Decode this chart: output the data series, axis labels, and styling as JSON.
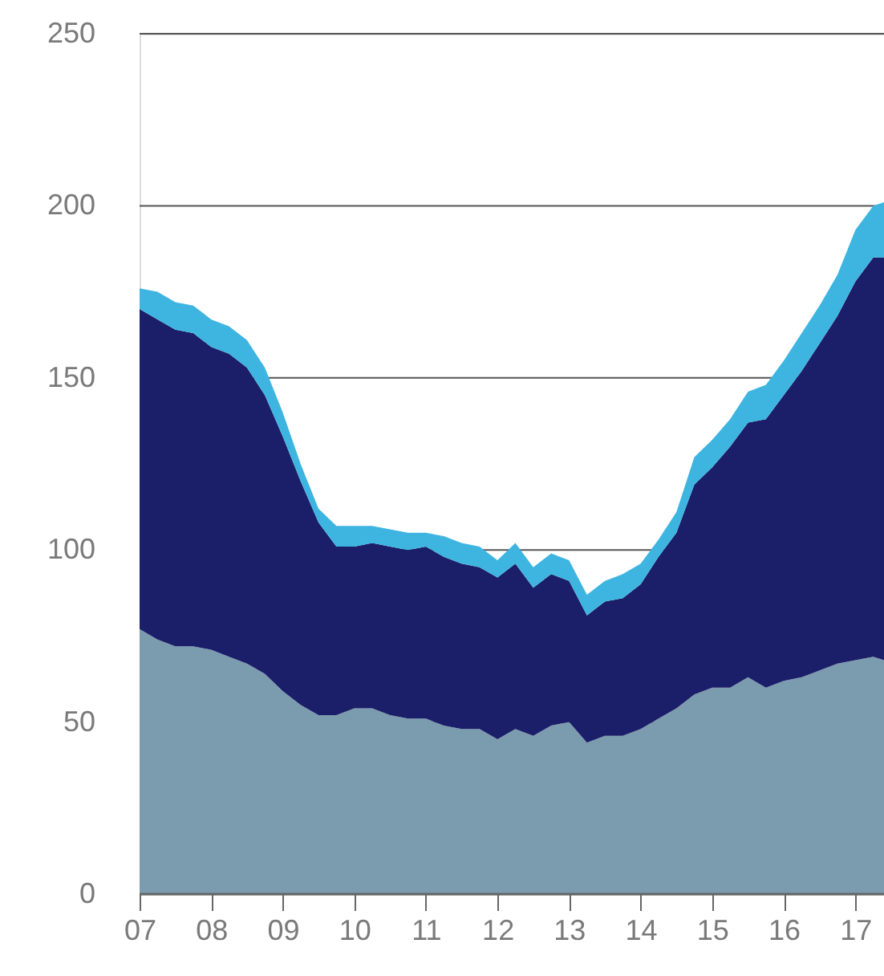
{
  "chart_data": {
    "type": "area",
    "stacked": true,
    "grid": "y",
    "x": [
      2007,
      2007.25,
      2007.5,
      2007.75,
      2008,
      2008.25,
      2008.5,
      2008.75,
      2009,
      2009.25,
      2009.5,
      2009.75,
      2010,
      2010.25,
      2010.5,
      2010.75,
      2011,
      2011.25,
      2011.5,
      2011.75,
      2012,
      2012.25,
      2012.5,
      2012.75,
      2013,
      2013.25,
      2013.5,
      2013.75,
      2014,
      2014.25,
      2014.5,
      2014.75,
      2015,
      2015.25,
      2015.5,
      2015.75,
      2016,
      2016.25,
      2016.5,
      2016.75,
      2017,
      2017.25,
      2017.4
    ],
    "xlim": [
      2007,
      2017.4
    ],
    "xticks": [
      {
        "value": 2007,
        "label": "07"
      },
      {
        "value": 2008,
        "label": "08"
      },
      {
        "value": 2009,
        "label": "09"
      },
      {
        "value": 2010,
        "label": "10"
      },
      {
        "value": 2011,
        "label": "11"
      },
      {
        "value": 2012,
        "label": "12"
      },
      {
        "value": 2013,
        "label": "13"
      },
      {
        "value": 2014,
        "label": "14"
      },
      {
        "value": 2015,
        "label": "15"
      },
      {
        "value": 2016,
        "label": "16"
      },
      {
        "value": 2017,
        "label": "17"
      }
    ],
    "ylim": [
      0,
      250
    ],
    "yticks": [
      0,
      50,
      100,
      150,
      200,
      250
    ],
    "series": [
      {
        "color": "#7b9bae",
        "values": [
          77,
          74,
          72,
          72,
          71,
          69,
          67,
          64,
          59,
          55,
          52,
          52,
          54,
          54,
          52,
          51,
          51,
          49,
          48,
          48,
          45,
          48,
          46,
          49,
          50,
          44,
          46,
          46,
          48,
          51,
          54,
          58,
          60,
          60,
          63,
          60,
          62,
          63,
          65,
          67,
          68,
          69,
          68
        ]
      },
      {
        "color": "#1b1e68",
        "values": [
          93,
          93,
          92,
          91,
          88,
          88,
          86,
          81,
          74,
          65,
          56,
          49,
          47,
          48,
          49,
          49,
          50,
          49,
          48,
          47,
          47,
          48,
          43,
          44,
          41,
          37,
          39,
          40,
          42,
          47,
          51,
          61,
          64,
          70,
          74,
          78,
          83,
          89,
          95,
          101,
          110,
          116,
          117
        ]
      },
      {
        "color": "#3db5e0",
        "values": [
          6,
          8,
          8,
          8,
          8,
          8,
          8,
          8,
          7,
          5,
          4,
          6,
          6,
          5,
          5,
          5,
          4,
          6,
          6,
          6,
          5,
          6,
          6,
          6,
          6,
          6,
          6,
          7,
          6,
          5,
          6,
          8,
          8,
          8,
          9,
          10,
          10,
          11,
          11,
          12,
          15,
          15,
          16
        ]
      }
    ]
  }
}
